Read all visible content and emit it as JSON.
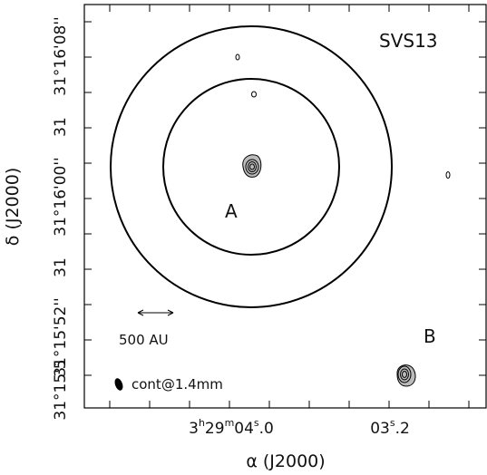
{
  "source_name": "SVS13",
  "sources": [
    "A",
    "B"
  ],
  "scale_bar": "500 AU",
  "beam_label": "cont@1.4mm",
  "x_axis": {
    "label": "α (J2000)",
    "ticks": [
      [
        "3",
        "h",
        "29",
        "m",
        "04",
        "s",
        ".0"
      ],
      [
        "03",
        "s",
        ".2"
      ]
    ]
  },
  "y_axis": {
    "label": "δ (J2000)",
    "ticks": [
      "31°16'08''",
      "31",
      "31°16'00''",
      "31",
      "31°15'52''",
      "31°15'5"
    ]
  }
}
